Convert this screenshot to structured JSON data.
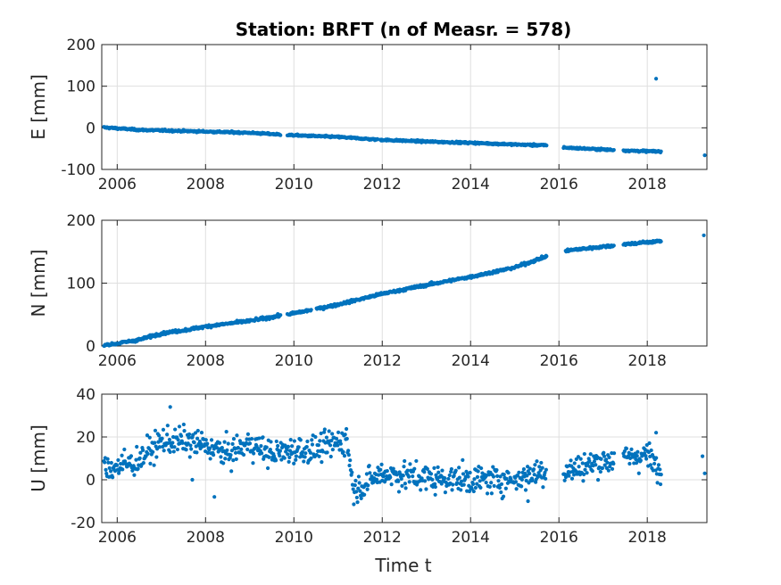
{
  "chart_data": {
    "type": "scatter",
    "title": "Station: BRFT (n of Measr. = 578)",
    "xlabel": "Time t",
    "x_range": [
      2005.65,
      2019.35
    ],
    "x_ticks": [
      2006,
      2008,
      2010,
      2012,
      2014,
      2016,
      2018
    ],
    "x_tick_labels": [
      "2006",
      "2008",
      "2010",
      "2012",
      "2014",
      "2016",
      "2018"
    ],
    "grid": true,
    "marker_color": "#0072BD",
    "panels": [
      {
        "id": "E",
        "ylabel": "E [mm]",
        "ylim": [
          -100,
          200
        ],
        "y_ticks": [
          -100,
          0,
          100,
          200
        ],
        "y_tick_labels": [
          "-100",
          "0",
          "100",
          "200"
        ],
        "trend_knots": [
          [
            2005.7,
            1
          ],
          [
            2006.5,
            -5
          ],
          [
            2008.0,
            -9
          ],
          [
            2009.0,
            -12
          ],
          [
            2010.0,
            -18
          ],
          [
            2011.0,
            -22
          ],
          [
            2012.0,
            -29
          ],
          [
            2013.0,
            -33
          ],
          [
            2014.0,
            -36
          ],
          [
            2015.0,
            -40
          ],
          [
            2015.7,
            -42
          ],
          [
            2016.2,
            -48
          ],
          [
            2017.0,
            -52
          ],
          [
            2017.6,
            -55
          ],
          [
            2018.3,
            -57
          ],
          [
            2019.3,
            -63
          ]
        ],
        "noise": 1.5,
        "gaps": [
          [
            2009.7,
            2009.85
          ],
          [
            2011.9,
            2011.95
          ],
          [
            2015.72,
            2016.1
          ],
          [
            2017.25,
            2017.45
          ],
          [
            2018.32,
            2019.25
          ]
        ],
        "density": 0.012,
        "outliers": [
          [
            2018.2,
            118
          ],
          [
            2019.3,
            -66
          ],
          [
            2015.2,
            -42
          ],
          [
            2015.4,
            -44
          ]
        ]
      },
      {
        "id": "N",
        "ylabel": "N [mm]",
        "ylim": [
          0,
          200
        ],
        "y_ticks": [
          0,
          100,
          200
        ],
        "y_tick_labels": [
          "0",
          "100",
          "200"
        ],
        "trend_knots": [
          [
            2005.7,
            1
          ],
          [
            2006.0,
            4
          ],
          [
            2006.5,
            10
          ],
          [
            2007.0,
            20
          ],
          [
            2007.6,
            26
          ],
          [
            2008.0,
            31
          ],
          [
            2009.0,
            40
          ],
          [
            2010.0,
            52
          ],
          [
            2011.0,
            66
          ],
          [
            2012.0,
            83
          ],
          [
            2013.0,
            97
          ],
          [
            2014.0,
            110
          ],
          [
            2015.0,
            125
          ],
          [
            2015.7,
            142
          ],
          [
            2016.2,
            152
          ],
          [
            2017.0,
            158
          ],
          [
            2017.5,
            162
          ],
          [
            2018.0,
            165
          ],
          [
            2018.3,
            167
          ],
          [
            2019.3,
            175
          ]
        ],
        "noise": 1.5,
        "gaps": [
          [
            2009.7,
            2009.85
          ],
          [
            2010.4,
            2010.5
          ],
          [
            2015.72,
            2016.15
          ],
          [
            2017.25,
            2017.45
          ],
          [
            2018.32,
            2019.25
          ]
        ],
        "density": 0.012,
        "outliers": [
          [
            2019.28,
            176
          ]
        ]
      },
      {
        "id": "U",
        "ylabel": "U [mm]",
        "ylim": [
          -20,
          40
        ],
        "y_ticks": [
          -20,
          0,
          20,
          40
        ],
        "y_tick_labels": [
          "-20",
          "0",
          "20",
          "40"
        ],
        "trend_knots": [
          [
            2005.7,
            5
          ],
          [
            2006.4,
            8
          ],
          [
            2007.0,
            18
          ],
          [
            2007.5,
            18
          ],
          [
            2008.0,
            16
          ],
          [
            2008.5,
            12
          ],
          [
            2009.0,
            17
          ],
          [
            2009.5,
            12
          ],
          [
            2010.0,
            14
          ],
          [
            2010.5,
            14
          ],
          [
            2011.2,
            19
          ],
          [
            2011.35,
            -5
          ],
          [
            2012.0,
            3
          ],
          [
            2013.0,
            1
          ],
          [
            2014.0,
            0
          ],
          [
            2015.0,
            0
          ],
          [
            2015.6,
            4
          ],
          [
            2016.2,
            4
          ],
          [
            2017.0,
            9
          ],
          [
            2017.5,
            10
          ],
          [
            2018.0,
            12
          ],
          [
            2018.3,
            2
          ],
          [
            2019.3,
            5
          ]
        ],
        "noise": 4.5,
        "gaps": [
          [
            2015.72,
            2016.1
          ],
          [
            2017.25,
            2017.45
          ],
          [
            2018.32,
            2019.25
          ]
        ],
        "density": 0.014,
        "outliers": [
          [
            2007.2,
            34
          ],
          [
            2008.2,
            -8
          ],
          [
            2013.2,
            -7
          ],
          [
            2015.3,
            -10
          ],
          [
            2018.2,
            22
          ],
          [
            2019.25,
            11
          ],
          [
            2019.3,
            3
          ],
          [
            2007.7,
            0
          ]
        ]
      }
    ]
  }
}
